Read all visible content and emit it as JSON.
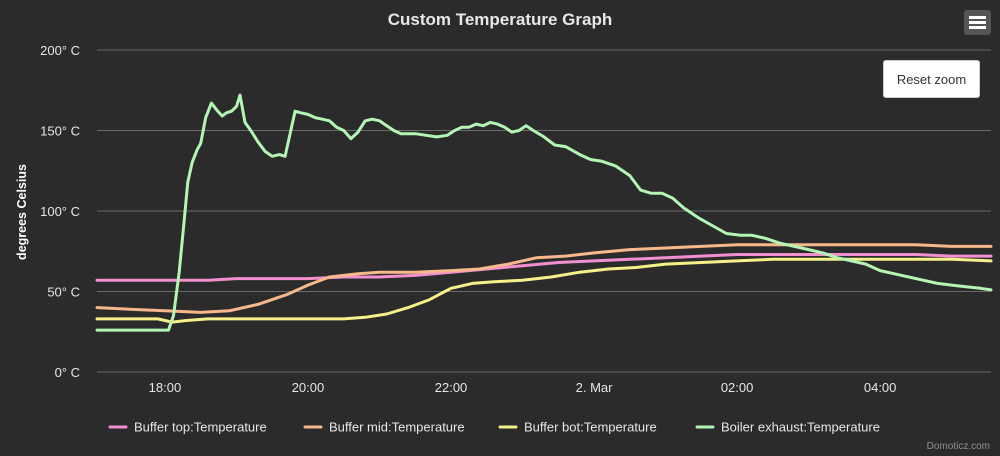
{
  "chart_data": {
    "type": "line",
    "title": "Custom Temperature Graph",
    "ylabel": "degrees Celsius",
    "xlabel": "",
    "ylim": [
      0,
      200
    ],
    "xlim": [
      17.05,
      29.55
    ],
    "y_ticks": [
      {
        "value": 0,
        "label": "0° C"
      },
      {
        "value": 50,
        "label": "50° C"
      },
      {
        "value": 100,
        "label": "100° C"
      },
      {
        "value": 150,
        "label": "150° C"
      },
      {
        "value": 200,
        "label": "200° C"
      }
    ],
    "x_ticks": [
      {
        "value": 18,
        "label": "18:00"
      },
      {
        "value": 20,
        "label": "20:00"
      },
      {
        "value": 22,
        "label": "22:00"
      },
      {
        "value": 24,
        "label": "2. Mar"
      },
      {
        "value": 26,
        "label": "02:00"
      },
      {
        "value": 28,
        "label": "04:00"
      }
    ],
    "legend_position": "bottom",
    "series": [
      {
        "name": "Buffer top:Temperature",
        "color": "#f28fd0",
        "points": [
          [
            17.05,
            57
          ],
          [
            18.0,
            57
          ],
          [
            18.6,
            57
          ],
          [
            19.0,
            58
          ],
          [
            19.5,
            58
          ],
          [
            20.0,
            58
          ],
          [
            20.5,
            59
          ],
          [
            21.0,
            59
          ],
          [
            21.5,
            60
          ],
          [
            22.0,
            62
          ],
          [
            22.5,
            64
          ],
          [
            23.0,
            66
          ],
          [
            23.5,
            68
          ],
          [
            24.0,
            69
          ],
          [
            24.5,
            70
          ],
          [
            25.0,
            71
          ],
          [
            25.5,
            72
          ],
          [
            26.0,
            73
          ],
          [
            26.5,
            73
          ],
          [
            27.0,
            73
          ],
          [
            27.5,
            73
          ],
          [
            28.0,
            73
          ],
          [
            28.5,
            73
          ],
          [
            29.0,
            72
          ],
          [
            29.55,
            72
          ]
        ]
      },
      {
        "name": "Buffer mid:Temperature",
        "color": "#f7b98c",
        "points": [
          [
            17.05,
            40
          ],
          [
            17.5,
            39
          ],
          [
            18.0,
            38
          ],
          [
            18.5,
            37
          ],
          [
            18.9,
            38
          ],
          [
            19.3,
            42
          ],
          [
            19.7,
            48
          ],
          [
            20.0,
            54
          ],
          [
            20.3,
            59
          ],
          [
            20.7,
            61
          ],
          [
            21.0,
            62
          ],
          [
            21.5,
            62
          ],
          [
            22.0,
            63
          ],
          [
            22.4,
            64
          ],
          [
            22.8,
            67
          ],
          [
            23.2,
            71
          ],
          [
            23.6,
            72
          ],
          [
            24.0,
            74
          ],
          [
            24.5,
            76
          ],
          [
            25.0,
            77
          ],
          [
            25.5,
            78
          ],
          [
            26.0,
            79
          ],
          [
            26.5,
            79
          ],
          [
            27.0,
            79
          ],
          [
            27.5,
            79
          ],
          [
            28.0,
            79
          ],
          [
            28.5,
            79
          ],
          [
            29.0,
            78
          ],
          [
            29.55,
            78
          ]
        ]
      },
      {
        "name": "Buffer bot:Temperature",
        "color": "#f5f08a",
        "points": [
          [
            17.05,
            33
          ],
          [
            17.5,
            33
          ],
          [
            17.9,
            33
          ],
          [
            18.1,
            31
          ],
          [
            18.3,
            32
          ],
          [
            18.6,
            33
          ],
          [
            19.0,
            33
          ],
          [
            19.5,
            33
          ],
          [
            20.0,
            33
          ],
          [
            20.5,
            33
          ],
          [
            20.8,
            34
          ],
          [
            21.1,
            36
          ],
          [
            21.4,
            40
          ],
          [
            21.7,
            45
          ],
          [
            22.0,
            52
          ],
          [
            22.3,
            55
          ],
          [
            22.6,
            56
          ],
          [
            23.0,
            57
          ],
          [
            23.4,
            59
          ],
          [
            23.8,
            62
          ],
          [
            24.2,
            64
          ],
          [
            24.6,
            65
          ],
          [
            25.0,
            67
          ],
          [
            25.5,
            68
          ],
          [
            26.0,
            69
          ],
          [
            26.5,
            70
          ],
          [
            27.0,
            70
          ],
          [
            27.5,
            70
          ],
          [
            28.0,
            70
          ],
          [
            28.5,
            70
          ],
          [
            29.0,
            70
          ],
          [
            29.55,
            69
          ]
        ]
      },
      {
        "name": "Boiler exhaust:Temperature",
        "color": "#b4f5b4",
        "points": [
          [
            17.05,
            26
          ],
          [
            17.7,
            26
          ],
          [
            18.05,
            26
          ],
          [
            18.12,
            35
          ],
          [
            18.2,
            62
          ],
          [
            18.27,
            95
          ],
          [
            18.32,
            118
          ],
          [
            18.38,
            130
          ],
          [
            18.45,
            138
          ],
          [
            18.5,
            142
          ],
          [
            18.57,
            158
          ],
          [
            18.65,
            167
          ],
          [
            18.72,
            163
          ],
          [
            18.8,
            159
          ],
          [
            18.86,
            161
          ],
          [
            18.93,
            162
          ],
          [
            19.0,
            165
          ],
          [
            19.05,
            172
          ],
          [
            19.12,
            155
          ],
          [
            19.2,
            150
          ],
          [
            19.3,
            143
          ],
          [
            19.4,
            137
          ],
          [
            19.5,
            134
          ],
          [
            19.6,
            135
          ],
          [
            19.68,
            134
          ],
          [
            19.75,
            148
          ],
          [
            19.82,
            162
          ],
          [
            19.9,
            161
          ],
          [
            20.0,
            160
          ],
          [
            20.1,
            158
          ],
          [
            20.2,
            157
          ],
          [
            20.3,
            156
          ],
          [
            20.4,
            152
          ],
          [
            20.5,
            150
          ],
          [
            20.6,
            145
          ],
          [
            20.7,
            149
          ],
          [
            20.8,
            156
          ],
          [
            20.9,
            157
          ],
          [
            21.0,
            156
          ],
          [
            21.1,
            153
          ],
          [
            21.2,
            150
          ],
          [
            21.3,
            148
          ],
          [
            21.4,
            148
          ],
          [
            21.5,
            148
          ],
          [
            21.65,
            147
          ],
          [
            21.8,
            146
          ],
          [
            21.95,
            147
          ],
          [
            22.05,
            150
          ],
          [
            22.15,
            152
          ],
          [
            22.25,
            152
          ],
          [
            22.35,
            154
          ],
          [
            22.45,
            153
          ],
          [
            22.55,
            155
          ],
          [
            22.65,
            154
          ],
          [
            22.75,
            152
          ],
          [
            22.85,
            149
          ],
          [
            22.95,
            150
          ],
          [
            23.05,
            153
          ],
          [
            23.15,
            150
          ],
          [
            23.3,
            146
          ],
          [
            23.45,
            141
          ],
          [
            23.6,
            140
          ],
          [
            23.8,
            135
          ],
          [
            23.95,
            132
          ],
          [
            24.1,
            131
          ],
          [
            24.3,
            128
          ],
          [
            24.5,
            122
          ],
          [
            24.65,
            113
          ],
          [
            24.8,
            111
          ],
          [
            24.95,
            111
          ],
          [
            25.1,
            108
          ],
          [
            25.25,
            102
          ],
          [
            25.45,
            96
          ],
          [
            25.65,
            91
          ],
          [
            25.85,
            86
          ],
          [
            26.05,
            85
          ],
          [
            26.2,
            85
          ],
          [
            26.4,
            83
          ],
          [
            26.6,
            80
          ],
          [
            26.8,
            78
          ],
          [
            27.0,
            76
          ],
          [
            27.2,
            74
          ],
          [
            27.4,
            71
          ],
          [
            27.6,
            69
          ],
          [
            27.8,
            67
          ],
          [
            28.0,
            63
          ],
          [
            28.2,
            61
          ],
          [
            28.4,
            59
          ],
          [
            28.6,
            57
          ],
          [
            28.8,
            55
          ],
          [
            29.0,
            54
          ],
          [
            29.2,
            53
          ],
          [
            29.4,
            52
          ],
          [
            29.55,
            51
          ]
        ]
      }
    ]
  },
  "reset_zoom_label": "Reset zoom",
  "credits": "Domoticz.com",
  "menu_icon": "hamburger-menu-icon"
}
